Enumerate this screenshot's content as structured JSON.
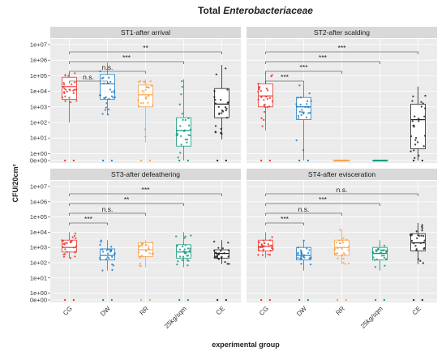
{
  "chart_data": {
    "type": "boxplot",
    "title_prefix": "Total ",
    "title_italic": "Enterobacteriaceae",
    "xlabel": "experimental group",
    "ylabel": "CFU/20cm²",
    "categories": [
      "CG",
      "DW",
      "RR",
      "25kg/sqm",
      "CE"
    ],
    "y_tick_labels": [
      "0e+00",
      "1e+00",
      "1e+01",
      "1e+02",
      "1e+03",
      "1e+04",
      "1e+05",
      "1e+06",
      "1e+07"
    ],
    "y_scale": "pseudo-log10",
    "group_colors": [
      "#e8342e",
      "#1f7fc4",
      "#f7a24b",
      "#0f9a7d",
      "#222222"
    ],
    "panels": [
      {
        "title": "ST1-after arrival",
        "boxes": [
          {
            "group": "CG",
            "min": 100,
            "q1": 3000,
            "median": 20000,
            "q3": 80000,
            "max": 150000
          },
          {
            "group": "DW",
            "min": 300,
            "q1": 3000,
            "median": 30000,
            "q3": 120000,
            "max": 700000
          },
          {
            "group": "RR",
            "min": 5,
            "q1": 1000,
            "median": 6000,
            "q3": 25000,
            "max": 60000
          },
          {
            "group": "25kg/sqm",
            "min": 0,
            "q1": 3,
            "median": 30,
            "q3": 200,
            "max": 60000
          },
          {
            "group": "CE",
            "min": 8,
            "q1": 200,
            "median": 1500,
            "q3": 15000,
            "max": 500000
          }
        ],
        "comparisons": [
          {
            "from": "CG",
            "to": "DW",
            "label": "n.s."
          },
          {
            "from": "CG",
            "to": "RR",
            "label": "n.s."
          },
          {
            "from": "CG",
            "to": "25kg/sqm",
            "label": "***"
          },
          {
            "from": "CG",
            "to": "CE",
            "label": "**"
          }
        ]
      },
      {
        "title": "ST2-after scalding",
        "boxes": [
          {
            "group": "CG",
            "min": 30,
            "q1": 1000,
            "median": 5000,
            "q3": 30000,
            "max": 150000
          },
          {
            "group": "DW",
            "min": 0,
            "q1": 150,
            "median": 1000,
            "q3": 4000,
            "max": 30000
          },
          {
            "group": "RR",
            "min": 0,
            "q1": 0,
            "median": 0,
            "q3": 0,
            "max": 0
          },
          {
            "group": "25kg/sqm",
            "min": 0,
            "q1": 0,
            "median": 0,
            "q3": 0,
            "max": 0
          },
          {
            "group": "CE",
            "min": 0,
            "q1": 2,
            "median": 150,
            "q3": 1500,
            "max": 20000
          }
        ],
        "comparisons": [
          {
            "from": "CG",
            "to": "DW",
            "label": "***"
          },
          {
            "from": "CG",
            "to": "RR",
            "label": "***"
          },
          {
            "from": "CG",
            "to": "25kg/sqm",
            "label": "***"
          },
          {
            "from": "CG",
            "to": "CE",
            "label": "***"
          }
        ]
      },
      {
        "title": "ST3-after defeathering",
        "boxes": [
          {
            "group": "CG",
            "min": 200,
            "q1": 500,
            "median": 1000,
            "q3": 3000,
            "max": 10000
          },
          {
            "group": "DW",
            "min": 30,
            "q1": 150,
            "median": 300,
            "q3": 800,
            "max": 3000
          },
          {
            "group": "RR",
            "min": 50,
            "q1": 250,
            "median": 700,
            "q3": 2000,
            "max": 3000
          },
          {
            "group": "25kg/sqm",
            "min": 50,
            "q1": 200,
            "median": 500,
            "q3": 1500,
            "max": 10000
          },
          {
            "group": "CE",
            "min": 80,
            "q1": 200,
            "median": 400,
            "q3": 700,
            "max": 3000
          }
        ],
        "comparisons": [
          {
            "from": "CG",
            "to": "DW",
            "label": "***"
          },
          {
            "from": "CG",
            "to": "RR",
            "label": "n.s."
          },
          {
            "from": "CG",
            "to": "25kg/sqm",
            "label": "**"
          },
          {
            "from": "CG",
            "to": "CE",
            "label": "***"
          }
        ]
      },
      {
        "title": "ST4-after evisceration",
        "boxes": [
          {
            "group": "CG",
            "min": 200,
            "q1": 600,
            "median": 1200,
            "q3": 3000,
            "max": 10000
          },
          {
            "group": "DW",
            "min": 30,
            "q1": 150,
            "median": 300,
            "q3": 1000,
            "max": 3000
          },
          {
            "group": "RR",
            "min": 80,
            "q1": 300,
            "median": 1000,
            "q3": 3000,
            "max": 15000
          },
          {
            "group": "25kg/sqm",
            "min": 30,
            "q1": 150,
            "median": 400,
            "q3": 1000,
            "max": 3000
          },
          {
            "group": "CE",
            "min": 80,
            "q1": 600,
            "median": 2000,
            "q3": 8000,
            "max": 40000
          }
        ],
        "comparisons": [
          {
            "from": "CG",
            "to": "DW",
            "label": "***"
          },
          {
            "from": "CG",
            "to": "RR",
            "label": "n.s."
          },
          {
            "from": "CG",
            "to": "25kg/sqm",
            "label": "***"
          },
          {
            "from": "CG",
            "to": "CE",
            "label": "n.s."
          }
        ]
      }
    ]
  }
}
